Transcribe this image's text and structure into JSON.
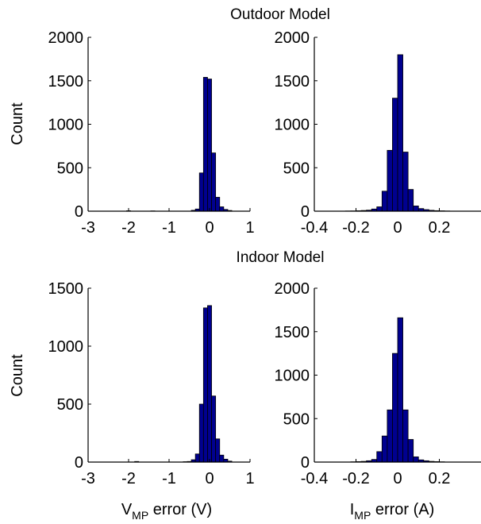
{
  "titles": {
    "top": "Outdoor Model",
    "bottom": "Indoor Model"
  },
  "ylabel": "Count",
  "xlabels": {
    "v": {
      "main": "V",
      "sub": "MP",
      "rest": " error (V)"
    },
    "i": {
      "main": "I",
      "sub": "MP",
      "rest": " error (A)"
    }
  },
  "bar_color": "#00008f",
  "chart_data": [
    {
      "type": "bar",
      "title": "Outdoor Model",
      "xlabel": "",
      "ylabel": "Count",
      "xlim": [
        -3,
        1
      ],
      "ylim": [
        0,
        2000
      ],
      "xticks": [
        -3,
        -2,
        -1,
        0,
        1
      ],
      "xtick_labels": [
        "-3",
        "-2",
        "-1",
        "0",
        "1"
      ],
      "yticks": [
        0,
        500,
        1000,
        1500,
        2000
      ],
      "ytick_labels": [
        "0",
        "500",
        "1000",
        "1500",
        "2000"
      ],
      "bin_width": 0.1,
      "bin_centers": [
        -2.0,
        -1.4,
        -0.4,
        -0.3,
        -0.2,
        -0.1,
        0.0,
        0.1,
        0.2,
        0.3,
        0.4,
        0.5
      ],
      "values": [
        5,
        3,
        10,
        25,
        440,
        1540,
        1520,
        670,
        160,
        50,
        20,
        8
      ]
    },
    {
      "type": "bar",
      "title": "Outdoor Model",
      "xlabel": "",
      "ylabel": "",
      "xlim": [
        -0.4,
        0.4
      ],
      "ylim": [
        0,
        2000
      ],
      "xticks": [
        -0.4,
        -0.2,
        0,
        0.2
      ],
      "xtick_labels": [
        "-0.4",
        "-0.2",
        "0",
        "0.2"
      ],
      "yticks": [
        0,
        500,
        1000,
        1500,
        2000
      ],
      "ytick_labels": [
        "0",
        "500",
        "1000",
        "1500",
        "2000"
      ],
      "bin_width": 0.025,
      "bin_centers": [
        -0.2375,
        -0.2125,
        -0.1875,
        -0.1625,
        -0.1375,
        -0.1125,
        -0.0875,
        -0.0625,
        -0.0375,
        -0.0125,
        0.0125,
        0.0375,
        0.0625,
        0.0875,
        0.1125,
        0.1375,
        0.1625,
        0.1875,
        0.2125,
        0.2375
      ],
      "values": [
        2,
        3,
        5,
        8,
        12,
        25,
        50,
        230,
        700,
        1300,
        1800,
        680,
        250,
        60,
        30,
        18,
        10,
        6,
        4,
        2
      ]
    },
    {
      "type": "bar",
      "title": "Indoor Model",
      "xlabel": "V_MP error (V)",
      "ylabel": "Count",
      "xlim": [
        -3,
        1
      ],
      "ylim": [
        0,
        1500
      ],
      "xticks": [
        -3,
        -2,
        -1,
        0,
        1
      ],
      "xtick_labels": [
        "-3",
        "-2",
        "-1",
        "0",
        "1"
      ],
      "yticks": [
        0,
        500,
        1000,
        1500
      ],
      "ytick_labels": [
        "0",
        "500",
        "1000",
        "1500"
      ],
      "bin_width": 0.1,
      "bin_centers": [
        -1.8,
        -0.6,
        -0.5,
        -0.4,
        -0.3,
        -0.2,
        -0.1,
        0.0,
        0.1,
        0.2,
        0.3,
        0.4,
        0.5
      ],
      "values": [
        5,
        3,
        5,
        20,
        70,
        500,
        1330,
        1350,
        570,
        200,
        60,
        25,
        8
      ]
    },
    {
      "type": "bar",
      "title": "Indoor Model",
      "xlabel": "I_MP error (A)",
      "ylabel": "",
      "xlim": [
        -0.4,
        0.4
      ],
      "ylim": [
        0,
        2000
      ],
      "xticks": [
        -0.4,
        -0.2,
        0,
        0.2
      ],
      "xtick_labels": [
        "-0.4",
        "-0.2",
        "0",
        "0.2"
      ],
      "yticks": [
        0,
        500,
        1000,
        1500,
        2000
      ],
      "ytick_labels": [
        "0",
        "500",
        "1000",
        "1500",
        "2000"
      ],
      "bin_width": 0.025,
      "bin_centers": [
        -0.2125,
        -0.1875,
        -0.1625,
        -0.1375,
        -0.1125,
        -0.0875,
        -0.0625,
        -0.0375,
        -0.0125,
        0.0125,
        0.0375,
        0.0625,
        0.0875,
        0.1125,
        0.1375,
        0.1625,
        0.1875,
        0.2125
      ],
      "values": [
        3,
        5,
        8,
        15,
        30,
        120,
        300,
        600,
        1250,
        1660,
        600,
        260,
        60,
        25,
        15,
        8,
        5,
        3
      ]
    }
  ]
}
